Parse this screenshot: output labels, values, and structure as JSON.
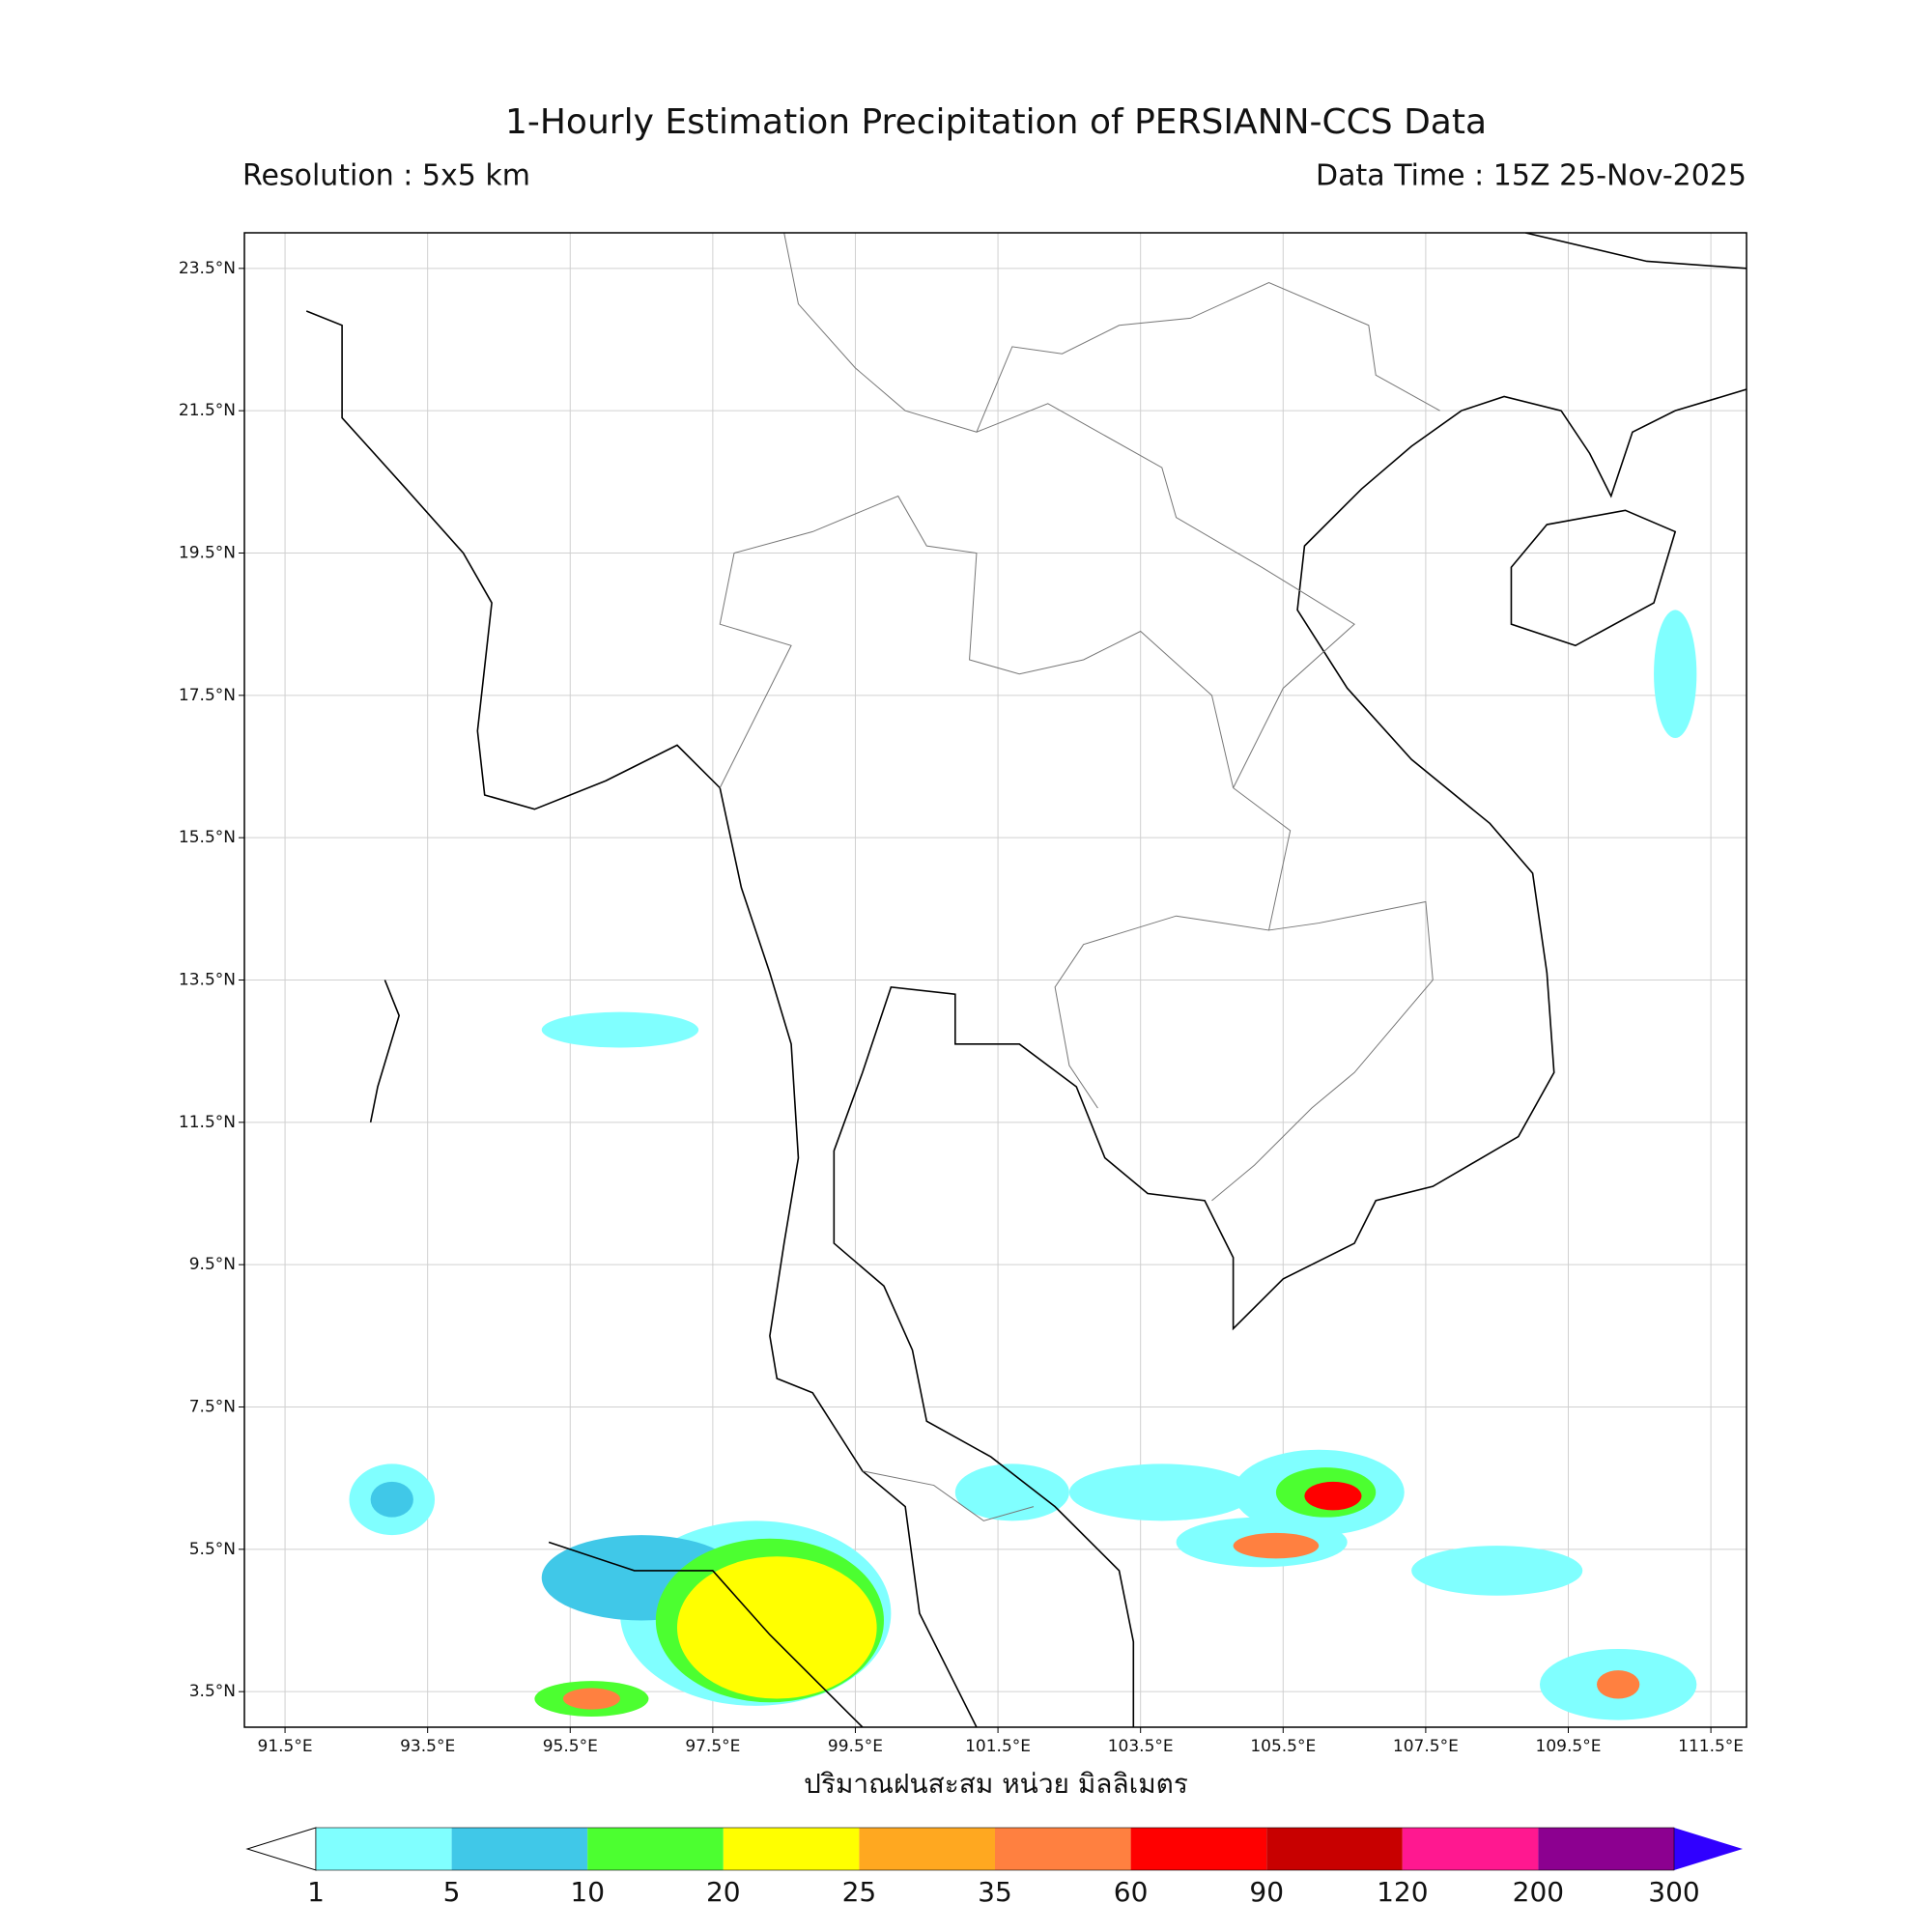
{
  "title": "1-Hourly Estimation Precipitation of PERSIANN-CCS Data",
  "resolution": "Resolution : 5x5 km",
  "data_time": "Data Time : 15Z 25-Nov-2025",
  "axis_label": "ปริมาณฝนสะสม หน่วย มิลลิเมตร",
  "map": {
    "lonlim": [
      90.93,
      112.0
    ],
    "latlim": [
      3.0,
      24.0
    ],
    "lon_ticks": [
      {
        "value": 91.5,
        "label": "91.5°E"
      },
      {
        "value": 93.5,
        "label": "93.5°E"
      },
      {
        "value": 95.5,
        "label": "95.5°E"
      },
      {
        "value": 97.5,
        "label": "97.5°E"
      },
      {
        "value": 99.5,
        "label": "99.5°E"
      },
      {
        "value": 101.5,
        "label": "101.5°E"
      },
      {
        "value": 103.5,
        "label": "103.5°E"
      },
      {
        "value": 105.5,
        "label": "105.5°E"
      },
      {
        "value": 107.5,
        "label": "107.5°E"
      },
      {
        "value": 109.5,
        "label": "109.5°E"
      },
      {
        "value": 111.5,
        "label": "111.5°E"
      }
    ],
    "lat_ticks": [
      {
        "value": 23.5,
        "label": "23.5°N"
      },
      {
        "value": 21.5,
        "label": "21.5°N"
      },
      {
        "value": 19.5,
        "label": "19.5°N"
      },
      {
        "value": 17.5,
        "label": "17.5°N"
      },
      {
        "value": 15.5,
        "label": "15.5°N"
      },
      {
        "value": 13.5,
        "label": "13.5°N"
      },
      {
        "value": 11.5,
        "label": "11.5°N"
      },
      {
        "value": 9.5,
        "label": "9.5°N"
      },
      {
        "value": 7.5,
        "label": "7.5°N"
      },
      {
        "value": 5.5,
        "label": "5.5°N"
      },
      {
        "value": 3.5,
        "label": "3.5°N"
      }
    ],
    "grid": true
  },
  "colorbar": {
    "levels": [
      1,
      5,
      10,
      20,
      25,
      35,
      60,
      90,
      120,
      200,
      300
    ],
    "colors": [
      "#80ffff",
      "#40c8e8",
      "#4cff30",
      "#ffff00",
      "#ffa820",
      "#ff8040",
      "#ff0000",
      "#c80000",
      "#ff1890",
      "#8c0090"
    ],
    "under_color": "#ffffff",
    "over_color": "#3000ff"
  }
}
